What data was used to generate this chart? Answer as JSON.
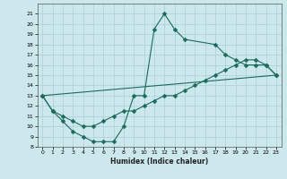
{
  "xlabel": "Humidex (Indice chaleur)",
  "bg_color": "#cce8ed",
  "grid_color": "#aacdd5",
  "line_color": "#1a6b5a",
  "curve1_x": [
    0,
    1,
    2,
    3,
    4,
    5,
    6,
    7,
    8,
    9,
    10,
    11,
    12,
    13,
    14,
    17,
    18,
    19,
    20,
    21,
    22,
    23
  ],
  "curve1_y": [
    13,
    11.5,
    10.5,
    9.5,
    9.0,
    8.5,
    8.5,
    8.5,
    10.0,
    13.0,
    13.0,
    19.5,
    21.0,
    19.5,
    18.5,
    18.0,
    17.0,
    16.5,
    16.0,
    16.0,
    16.0,
    15.0
  ],
  "curve2_x": [
    0,
    1,
    2,
    3,
    4,
    5,
    6,
    7,
    8,
    9,
    10,
    11,
    12,
    13,
    14,
    15,
    16,
    17,
    18,
    19,
    20,
    21,
    22,
    23
  ],
  "curve2_y": [
    13.0,
    11.5,
    11.0,
    10.5,
    10.0,
    10.0,
    10.5,
    11.0,
    11.5,
    11.5,
    12.0,
    12.5,
    13.0,
    13.0,
    13.5,
    14.0,
    14.5,
    15.0,
    15.5,
    16.0,
    16.5,
    16.5,
    16.0,
    15.0
  ],
  "curve3_x": [
    0,
    23
  ],
  "curve3_y": [
    13.0,
    15.0
  ],
  "xlim": [
    -0.5,
    23.5
  ],
  "ylim": [
    8,
    22
  ],
  "xticks": [
    0,
    1,
    2,
    3,
    4,
    5,
    6,
    7,
    8,
    9,
    10,
    11,
    12,
    13,
    14,
    15,
    16,
    17,
    18,
    19,
    20,
    21,
    22,
    23
  ],
  "yticks": [
    8,
    9,
    10,
    11,
    12,
    13,
    14,
    15,
    16,
    17,
    18,
    19,
    20,
    21
  ]
}
